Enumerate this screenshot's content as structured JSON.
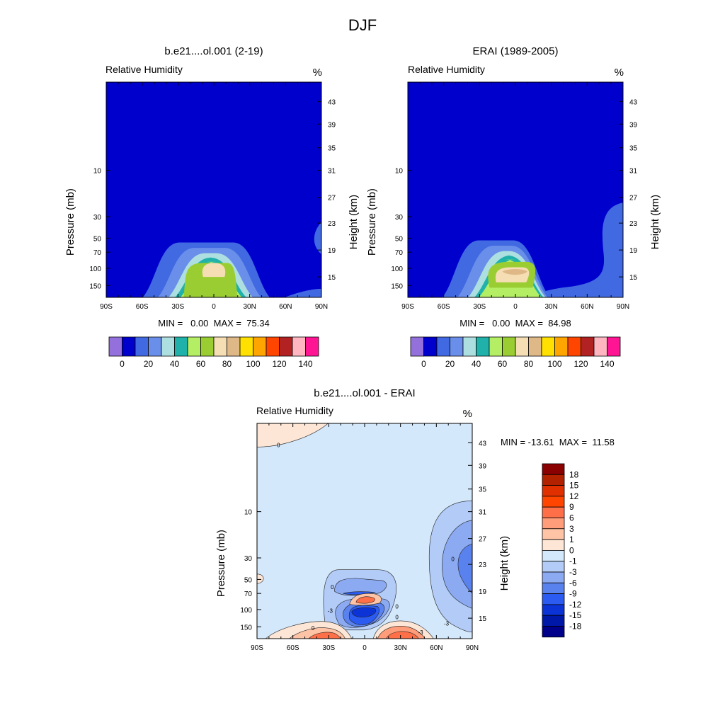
{
  "chart_data": {
    "type": "heatmap",
    "title": "DJF",
    "panels": [
      {
        "id": "model",
        "title": "b.e21....ol.001 (2-19)",
        "variable": "Relative Humidity",
        "units": "%",
        "ylabel_left": "Pressure (mb)",
        "ylabel_right": "Height (km)",
        "x_ticks": [
          "90S",
          "60S",
          "30S",
          "0",
          "30N",
          "60N",
          "90N"
        ],
        "p_ticks": [
          "10",
          "30",
          "50",
          "70",
          "100",
          "150"
        ],
        "h_ticks": [
          "43",
          "39",
          "35",
          "31",
          "27",
          "23",
          "19",
          "15"
        ],
        "stats_text": "MIN =   0.00  MAX =  75.34",
        "min": 0.0,
        "max": 75.34,
        "features": [
          {
            "lat": 0,
            "p": 150,
            "halfwidth_deg": 25,
            "ptop": 60,
            "value": 65
          },
          {
            "lat": -5,
            "p": 110,
            "halfwidth_deg": 10,
            "ptop": 90,
            "value": 75
          }
        ]
      },
      {
        "id": "obs",
        "title": "ERAI (1989-2005)",
        "variable": "Relative Humidity",
        "units": "%",
        "ylabel_left": "Pressure (mb)",
        "ylabel_right": "Height (km)",
        "x_ticks": [
          "90S",
          "60S",
          "30S",
          "0",
          "30N",
          "60N",
          "90N"
        ],
        "p_ticks": [
          "10",
          "30",
          "50",
          "70",
          "100",
          "150"
        ],
        "h_ticks": [
          "43",
          "39",
          "35",
          "31",
          "27",
          "23",
          "19",
          "15"
        ],
        "stats_text": "MIN =   0.00  MAX =  84.98",
        "min": 0.0,
        "max": 84.98,
        "features": [
          {
            "lat": 0,
            "p": 150,
            "halfwidth_deg": 25,
            "ptop": 60,
            "value": 70
          },
          {
            "lat": 0,
            "p": 110,
            "halfwidth_deg": 12,
            "ptop": 90,
            "value": 80
          }
        ]
      },
      {
        "id": "diff",
        "title": "b.e21....ol.001 - ERAI",
        "variable": "Relative Humidity",
        "units": "%",
        "ylabel_left": "Pressure (mb)",
        "ylabel_right": "Height (km)",
        "x_ticks": [
          "90S",
          "60S",
          "30S",
          "0",
          "30N",
          "60N",
          "90N"
        ],
        "p_ticks": [
          "10",
          "30",
          "50",
          "70",
          "100",
          "150"
        ],
        "h_ticks": [
          "43",
          "39",
          "35",
          "31",
          "27",
          "23",
          "19",
          "15"
        ],
        "stats_text": "MIN = -13.61  MAX =  11.58",
        "min": -13.61,
        "max": 11.58,
        "contour_labels": [
          "0",
          "0",
          "-3",
          "-3",
          "0",
          "0",
          "-3",
          "0",
          "0"
        ],
        "features": [
          {
            "lat": 0,
            "p": 105,
            "halfwidth_deg": 12,
            "value": -13
          },
          {
            "lat": 0,
            "p": 72,
            "halfwidth_deg": 8,
            "value": 6
          },
          {
            "lat": -5,
            "p": 165,
            "halfwidth_deg": 25,
            "value": 9
          },
          {
            "lat": 30,
            "p": 165,
            "halfwidth_deg": 15,
            "value": 11
          },
          {
            "lat": 80,
            "p": 25,
            "halfwidth_deg": 10,
            "value": -9
          }
        ]
      }
    ],
    "colorbars": {
      "rh": {
        "labels": [
          "0",
          "20",
          "40",
          "60",
          "80",
          "100",
          "120",
          "140"
        ],
        "colors": [
          "#9370DB",
          "#0000CD",
          "#4169E1",
          "#6A8FEA",
          "#AEDFE0",
          "#20B2AA",
          "#B4EE64",
          "#9ACD32",
          "#F5DEB3",
          "#DEB887",
          "#FFE000",
          "#FFA500",
          "#FF4500",
          "#B22222",
          "#FFB6C1",
          "#FF1493"
        ]
      },
      "diff": {
        "labels": [
          "18",
          "15",
          "12",
          "9",
          "6",
          "3",
          "1",
          "0",
          "-1",
          "-3",
          "-6",
          "-9",
          "-12",
          "-15",
          "-18"
        ],
        "colors": [
          "#8B0000",
          "#B22200",
          "#E03000",
          "#FF4500",
          "#FF7048",
          "#FF9C7A",
          "#FFC4A6",
          "#FDE6D6",
          "#D4E8FB",
          "#B2CBF7",
          "#8BAAF2",
          "#5A82EF",
          "#2B5BF0",
          "#0B33D6",
          "#0018A8",
          "#00008B"
        ]
      }
    }
  }
}
